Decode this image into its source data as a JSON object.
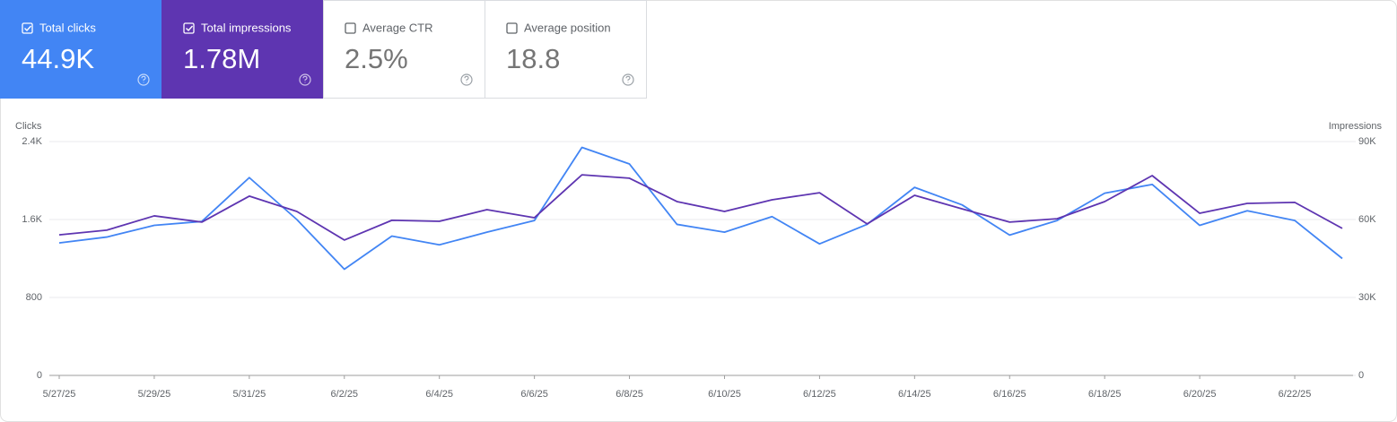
{
  "cards": [
    {
      "label": "Total clicks",
      "value": "44.9K",
      "checked": true,
      "color": "#4285f4"
    },
    {
      "label": "Total impressions",
      "value": "1.78M",
      "checked": true,
      "color": "#5e35b1"
    },
    {
      "label": "Average CTR",
      "value": "2.5%",
      "checked": false,
      "color": "#ffffff"
    },
    {
      "label": "Average position",
      "value": "18.8",
      "checked": false,
      "color": "#ffffff"
    }
  ],
  "chart_data": {
    "type": "line",
    "y_label": "Clicks",
    "y2_label": "Impressions",
    "categories": [
      "5/27/25",
      null,
      "5/29/25",
      null,
      "5/31/25",
      null,
      "6/2/25",
      null,
      "6/4/25",
      null,
      "6/6/25",
      null,
      "6/8/25",
      null,
      "6/10/25",
      null,
      "6/12/25",
      null,
      "6/14/25",
      null,
      "6/16/25",
      null,
      "6/18/25",
      null,
      "6/20/25",
      null,
      "6/22/25",
      null
    ],
    "series": [
      {
        "color": "#4285f4",
        "values": [
          1360,
          1420,
          1540,
          1580,
          2030,
          1600,
          1090,
          1430,
          1340,
          1470,
          1590,
          2340,
          2170,
          1550,
          1470,
          1630,
          1350,
          1550,
          1930,
          1750,
          1440,
          1590,
          1870,
          1960,
          1540,
          1690,
          1590,
          1200
        ]
      },
      {
        "color": "#5e35b1",
        "axis": "y2",
        "values": [
          54100,
          55900,
          61400,
          59000,
          69000,
          63100,
          52100,
          59700,
          59300,
          63800,
          60700,
          77200,
          75900,
          66900,
          63100,
          67600,
          70300,
          58300,
          69300,
          64100,
          59000,
          60300,
          66900,
          76900,
          62400,
          66200,
          66600,
          56600
        ]
      }
    ],
    "ylim": [
      0,
      2400
    ],
    "yticks": [
      0,
      800,
      {
        "value": 1600,
        "label": "1.6K"
      },
      {
        "value": 2400,
        "label": "2.4K"
      }
    ],
    "y2lim": [
      0,
      90000
    ],
    "y2ticks": [
      0,
      {
        "value": 30000,
        "label": "30K"
      },
      {
        "value": 60000,
        "label": "60K"
      },
      {
        "value": 90000,
        "label": "90K"
      }
    ],
    "grid": true
  }
}
